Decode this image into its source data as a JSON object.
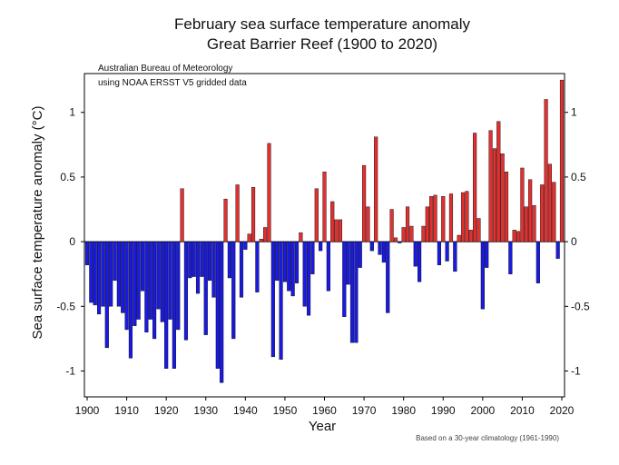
{
  "chart_data": {
    "type": "bar",
    "title": "February sea surface temperature anomaly",
    "subtitle": "Great Barrier Reef (1900 to 2020)",
    "xlabel": "Year",
    "ylabel": "Sea surface temperature anomaly (°C)",
    "annotation_lines": [
      "Australian Bureau of Meteorology",
      "using NOAA ERSST V5 gridded data"
    ],
    "footnote": "Based on a 30-year climatology (1961-1990)",
    "xlim": [
      1900,
      2020
    ],
    "ylim": [
      -1.2,
      1.3
    ],
    "x_ticks": [
      1900,
      1910,
      1920,
      1930,
      1940,
      1950,
      1960,
      1970,
      1980,
      1990,
      2000,
      2010,
      2020
    ],
    "y_ticks": [
      -1,
      -0.5,
      0,
      0.5,
      1
    ],
    "grid": false,
    "colors": {
      "positive": "#e03030",
      "negative": "#1a1ae0",
      "outline": "#000000"
    },
    "x": [
      1900,
      1901,
      1902,
      1903,
      1904,
      1905,
      1906,
      1907,
      1908,
      1909,
      1910,
      1911,
      1912,
      1913,
      1914,
      1915,
      1916,
      1917,
      1918,
      1919,
      1920,
      1921,
      1922,
      1923,
      1924,
      1925,
      1926,
      1927,
      1928,
      1929,
      1930,
      1931,
      1932,
      1933,
      1934,
      1935,
      1936,
      1937,
      1938,
      1939,
      1940,
      1941,
      1942,
      1943,
      1944,
      1945,
      1946,
      1947,
      1948,
      1949,
      1950,
      1951,
      1952,
      1953,
      1954,
      1955,
      1956,
      1957,
      1958,
      1959,
      1960,
      1961,
      1962,
      1963,
      1964,
      1965,
      1966,
      1967,
      1968,
      1969,
      1970,
      1971,
      1972,
      1973,
      1974,
      1975,
      1976,
      1977,
      1978,
      1979,
      1980,
      1981,
      1982,
      1983,
      1984,
      1985,
      1986,
      1987,
      1988,
      1989,
      1990,
      1991,
      1992,
      1993,
      1994,
      1995,
      1996,
      1997,
      1998,
      1999,
      2000,
      2001,
      2002,
      2003,
      2004,
      2005,
      2006,
      2007,
      2008,
      2009,
      2010,
      2011,
      2012,
      2013,
      2014,
      2015,
      2016,
      2017,
      2018,
      2019,
      2020
    ],
    "values": [
      -0.18,
      -0.47,
      -0.49,
      -0.56,
      -0.5,
      -0.82,
      -0.5,
      -0.3,
      -0.5,
      -0.55,
      -0.68,
      -0.9,
      -0.65,
      -0.6,
      -0.38,
      -0.7,
      -0.6,
      -0.75,
      -0.52,
      -0.62,
      -0.98,
      -0.6,
      -0.98,
      -0.68,
      0.41,
      -0.76,
      -0.28,
      -0.27,
      -0.4,
      -0.27,
      -0.72,
      -0.3,
      -0.43,
      -0.98,
      -1.09,
      0.33,
      -0.28,
      -0.75,
      0.44,
      -0.43,
      -0.06,
      0.06,
      0.42,
      -0.39,
      0.02,
      0.11,
      0.76,
      -0.89,
      -0.3,
      -0.91,
      -0.31,
      -0.38,
      -0.42,
      -0.32,
      0.07,
      -0.5,
      -0.57,
      -0.25,
      0.41,
      -0.07,
      0.54,
      -0.38,
      0.31,
      0.17,
      0.17,
      -0.58,
      -0.33,
      -0.78,
      -0.78,
      -0.2,
      0.59,
      0.27,
      -0.07,
      0.81,
      -0.1,
      -0.16,
      -0.55,
      0.25,
      0.03,
      -0.01,
      0.11,
      0.27,
      0.12,
      -0.19,
      -0.31,
      0.12,
      0.27,
      0.35,
      0.36,
      -0.18,
      0.35,
      -0.15,
      0.37,
      -0.23,
      0.05,
      0.38,
      0.39,
      0.09,
      0.84,
      0.18,
      -0.52,
      -0.2,
      0.86,
      0.72,
      0.93,
      0.68,
      0.54,
      -0.25,
      0.09,
      0.08,
      0.57,
      0.27,
      0.48,
      0.28,
      -0.32,
      0.44,
      1.1,
      0.6,
      0.46,
      -0.13,
      1.25
    ]
  }
}
